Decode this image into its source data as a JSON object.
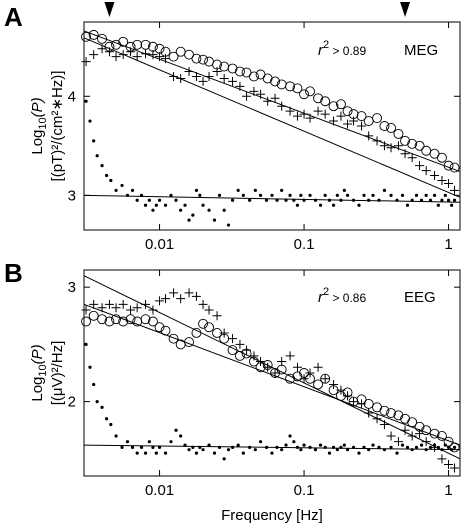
{
  "figure": {
    "xlabel_shared": "Frequency [Hz]"
  },
  "chart_data": [
    {
      "type": "scatter",
      "panel": "A",
      "annotation_r2": "r",
      "annotation_exp": "2",
      "annotation_value": " > 0.89",
      "annotation_modality": "MEG",
      "ylabel_line1_prefix": "Log",
      "ylabel_line1_sub": "10",
      "ylabel_line1_suffix": "(P)",
      "ylabel_line2": "[(pT)²/(cm²∗Hz)]",
      "xscale": "log",
      "xlim": [
        0.003,
        1.2
      ],
      "ylim": [
        2.65,
        4.75
      ],
      "xticks": [
        {
          "v": 0.01,
          "label": "0.01"
        },
        {
          "v": 0.1,
          "label": "0.1"
        },
        {
          "v": 1,
          "label": "1"
        }
      ],
      "yticks": [
        {
          "v": 3,
          "label": "3"
        },
        {
          "v": 4,
          "label": "4"
        }
      ],
      "markers": [
        0.0045,
        0.5
      ],
      "fits": [
        {
          "name": "circles fit",
          "x": [
            0.003,
            1.2
          ],
          "y": [
            4.66,
            3.24
          ]
        },
        {
          "name": "plus fit",
          "x": [
            0.003,
            1.2
          ],
          "y": [
            4.59,
            2.98
          ]
        },
        {
          "name": "dots fit",
          "x": [
            0.003,
            1.2
          ],
          "y": [
            3.0,
            2.93
          ]
        }
      ],
      "series": [
        {
          "marker": "circle",
          "x": [
            0.0031,
            0.0035,
            0.004,
            0.0045,
            0.005,
            0.0056,
            0.0063,
            0.007,
            0.008,
            0.009,
            0.01,
            0.011,
            0.0125,
            0.014,
            0.016,
            0.018,
            0.02,
            0.022,
            0.025,
            0.028,
            0.032,
            0.036,
            0.04,
            0.045,
            0.05,
            0.056,
            0.063,
            0.07,
            0.08,
            0.09,
            0.1,
            0.11,
            0.125,
            0.14,
            0.16,
            0.18,
            0.2,
            0.22,
            0.25,
            0.28,
            0.32,
            0.36,
            0.4,
            0.45,
            0.5,
            0.56,
            0.63,
            0.7,
            0.8,
            0.9,
            1.0,
            1.1
          ],
          "y": [
            4.6,
            4.62,
            4.58,
            4.5,
            4.52,
            4.55,
            4.5,
            4.52,
            4.52,
            4.5,
            4.48,
            4.45,
            4.4,
            4.45,
            4.42,
            4.38,
            4.37,
            4.35,
            4.32,
            4.3,
            4.28,
            4.25,
            4.24,
            4.2,
            4.22,
            4.18,
            4.15,
            4.12,
            4.1,
            4.08,
            4.02,
            4.05,
            3.98,
            3.95,
            3.9,
            3.92,
            3.85,
            3.82,
            3.8,
            3.75,
            3.78,
            3.7,
            3.68,
            3.62,
            3.55,
            3.52,
            3.5,
            3.45,
            3.42,
            3.38,
            3.3,
            3.28
          ]
        },
        {
          "marker": "plus",
          "x": [
            0.0031,
            0.0035,
            0.004,
            0.0045,
            0.005,
            0.0056,
            0.0063,
            0.007,
            0.008,
            0.009,
            0.01,
            0.011,
            0.0125,
            0.014,
            0.016,
            0.018,
            0.02,
            0.022,
            0.025,
            0.028,
            0.032,
            0.036,
            0.04,
            0.045,
            0.05,
            0.056,
            0.063,
            0.07,
            0.08,
            0.09,
            0.1,
            0.11,
            0.125,
            0.14,
            0.16,
            0.18,
            0.2,
            0.22,
            0.25,
            0.28,
            0.32,
            0.36,
            0.4,
            0.45,
            0.5,
            0.56,
            0.63,
            0.7,
            0.8,
            0.9,
            1.0,
            1.1
          ],
          "y": [
            4.35,
            4.42,
            4.48,
            4.45,
            4.4,
            4.42,
            4.45,
            4.4,
            4.43,
            4.42,
            4.4,
            4.38,
            4.2,
            4.18,
            4.25,
            4.2,
            4.15,
            4.2,
            4.25,
            4.18,
            4.15,
            4.1,
            4.0,
            4.05,
            4.02,
            3.95,
            3.98,
            3.9,
            3.85,
            3.8,
            3.82,
            3.78,
            3.85,
            3.82,
            3.75,
            3.8,
            3.72,
            3.75,
            3.7,
            3.6,
            3.55,
            3.5,
            3.48,
            3.5,
            3.42,
            3.38,
            3.3,
            3.25,
            3.2,
            3.15,
            3.12,
            3.05
          ]
        },
        {
          "marker": "dot",
          "x": [
            0.0031,
            0.0033,
            0.0035,
            0.0037,
            0.004,
            0.0043,
            0.0046,
            0.005,
            0.0055,
            0.006,
            0.0065,
            0.007,
            0.0075,
            0.008,
            0.0085,
            0.009,
            0.0095,
            0.01,
            0.011,
            0.012,
            0.013,
            0.014,
            0.015,
            0.016,
            0.017,
            0.018,
            0.019,
            0.02,
            0.022,
            0.024,
            0.026,
            0.028,
            0.03,
            0.032,
            0.035,
            0.038,
            0.042,
            0.046,
            0.05,
            0.055,
            0.06,
            0.065,
            0.07,
            0.075,
            0.08,
            0.085,
            0.09,
            0.095,
            0.1,
            0.11,
            0.12,
            0.13,
            0.14,
            0.15,
            0.16,
            0.17,
            0.18,
            0.19,
            0.2,
            0.22,
            0.24,
            0.26,
            0.28,
            0.3,
            0.33,
            0.36,
            0.4,
            0.44,
            0.48,
            0.52,
            0.56,
            0.6,
            0.65,
            0.7,
            0.75,
            0.8,
            0.85,
            0.9,
            0.95,
            1.0,
            1.05,
            1.1
          ],
          "y": [
            3.95,
            3.75,
            3.55,
            3.4,
            3.3,
            3.2,
            3.15,
            3.05,
            3.1,
            3.0,
            3.05,
            2.95,
            3.0,
            2.9,
            2.95,
            2.85,
            2.9,
            2.95,
            2.9,
            3.0,
            2.95,
            2.85,
            2.9,
            2.75,
            2.8,
            3.05,
            3.0,
            2.9,
            2.85,
            2.75,
            3.0,
            2.85,
            2.7,
            2.95,
            3.05,
            3.0,
            2.95,
            3.05,
            3.0,
            2.95,
            3.0,
            2.95,
            3.05,
            2.95,
            3.0,
            2.95,
            2.9,
            3.0,
            2.95,
            3.0,
            2.95,
            2.9,
            3.0,
            2.95,
            2.9,
            3.0,
            2.95,
            3.05,
            3.0,
            2.95,
            2.9,
            3.0,
            2.95,
            3.0,
            2.95,
            3.05,
            3.0,
            2.95,
            3.0,
            2.9,
            2.95,
            3.0,
            2.95,
            3.0,
            2.95,
            3.0,
            2.9,
            2.95,
            3.0,
            2.95,
            2.9,
            2.95
          ]
        }
      ]
    },
    {
      "type": "scatter",
      "panel": "B",
      "annotation_r2": "r",
      "annotation_exp": "2",
      "annotation_value": " > 0.86",
      "annotation_modality": "EEG",
      "ylabel_line1_prefix": "Log",
      "ylabel_line1_sub": "10",
      "ylabel_line1_suffix": "(P)",
      "ylabel_line2": "[(μV)²/Hz]",
      "xscale": "log",
      "xlim": [
        0.003,
        1.2
      ],
      "ylim": [
        1.35,
        3.15
      ],
      "xticks": [
        {
          "v": 0.01,
          "label": "0.01"
        },
        {
          "v": 0.1,
          "label": "0.1"
        },
        {
          "v": 1,
          "label": "1"
        }
      ],
      "yticks": [
        {
          "v": 2,
          "label": "2"
        },
        {
          "v": 3,
          "label": "3"
        }
      ],
      "fits": [
        {
          "name": "plus fit",
          "x": [
            0.003,
            1.2
          ],
          "y": [
            3.1,
            1.5
          ]
        },
        {
          "name": "circles fit",
          "x": [
            0.003,
            1.2
          ],
          "y": [
            2.85,
            1.62
          ]
        },
        {
          "name": "dots fit",
          "x": [
            0.003,
            1.2
          ],
          "y": [
            1.62,
            1.58
          ]
        }
      ],
      "series": [
        {
          "marker": "circle",
          "x": [
            0.0031,
            0.0035,
            0.004,
            0.0045,
            0.005,
            0.0056,
            0.0063,
            0.007,
            0.008,
            0.009,
            0.01,
            0.011,
            0.0125,
            0.014,
            0.016,
            0.018,
            0.02,
            0.022,
            0.025,
            0.028,
            0.032,
            0.036,
            0.04,
            0.045,
            0.05,
            0.056,
            0.063,
            0.07,
            0.08,
            0.09,
            0.1,
            0.11,
            0.125,
            0.14,
            0.16,
            0.18,
            0.2,
            0.22,
            0.25,
            0.28,
            0.32,
            0.36,
            0.4,
            0.45,
            0.5,
            0.56,
            0.63,
            0.7,
            0.8,
            0.9,
            1.0,
            1.1
          ],
          "y": [
            2.7,
            2.75,
            2.72,
            2.7,
            2.72,
            2.7,
            2.72,
            2.7,
            2.72,
            2.7,
            2.65,
            2.62,
            2.55,
            2.5,
            2.52,
            2.6,
            2.68,
            2.65,
            2.6,
            2.55,
            2.45,
            2.4,
            2.42,
            2.35,
            2.3,
            2.32,
            2.25,
            2.28,
            2.2,
            2.22,
            2.25,
            2.2,
            2.15,
            2.2,
            2.1,
            2.05,
            2.08,
            2.0,
            2.02,
            1.98,
            1.95,
            1.92,
            1.9,
            1.88,
            1.85,
            1.82,
            1.78,
            1.75,
            1.72,
            1.7,
            1.65,
            1.6
          ]
        },
        {
          "marker": "plus",
          "x": [
            0.0031,
            0.0035,
            0.004,
            0.0045,
            0.005,
            0.0056,
            0.0063,
            0.007,
            0.008,
            0.009,
            0.01,
            0.011,
            0.0125,
            0.014,
            0.016,
            0.018,
            0.02,
            0.022,
            0.025,
            0.028,
            0.032,
            0.036,
            0.04,
            0.045,
            0.05,
            0.056,
            0.063,
            0.07,
            0.08,
            0.09,
            0.1,
            0.11,
            0.125,
            0.14,
            0.16,
            0.18,
            0.2,
            0.22,
            0.25,
            0.28,
            0.32,
            0.36,
            0.4,
            0.45,
            0.5,
            0.56,
            0.63,
            0.7,
            0.8,
            0.9,
            1.0,
            1.1
          ],
          "y": [
            2.8,
            2.85,
            2.82,
            2.85,
            2.82,
            2.85,
            2.8,
            2.82,
            2.85,
            2.8,
            2.88,
            2.9,
            2.95,
            2.9,
            2.95,
            2.92,
            2.85,
            2.8,
            2.75,
            2.6,
            2.55,
            2.5,
            2.45,
            2.4,
            2.35,
            2.3,
            2.25,
            2.35,
            2.4,
            2.3,
            2.2,
            2.25,
            2.3,
            2.2,
            2.15,
            2.1,
            2.05,
            2.0,
            1.98,
            1.9,
            1.85,
            1.8,
            1.7,
            1.65,
            1.75,
            1.7,
            1.72,
            1.65,
            1.6,
            1.5,
            1.45,
            1.42
          ]
        },
        {
          "marker": "dot",
          "x": [
            0.0031,
            0.0033,
            0.0035,
            0.0037,
            0.004,
            0.0043,
            0.0046,
            0.005,
            0.0055,
            0.006,
            0.0065,
            0.007,
            0.0075,
            0.008,
            0.0085,
            0.009,
            0.0095,
            0.01,
            0.011,
            0.012,
            0.013,
            0.014,
            0.015,
            0.016,
            0.017,
            0.018,
            0.019,
            0.02,
            0.022,
            0.024,
            0.026,
            0.028,
            0.03,
            0.032,
            0.035,
            0.038,
            0.042,
            0.046,
            0.05,
            0.055,
            0.06,
            0.065,
            0.07,
            0.075,
            0.08,
            0.085,
            0.09,
            0.095,
            0.1,
            0.11,
            0.12,
            0.13,
            0.14,
            0.15,
            0.16,
            0.17,
            0.18,
            0.19,
            0.2,
            0.22,
            0.24,
            0.26,
            0.28,
            0.3,
            0.33,
            0.36,
            0.4,
            0.44,
            0.48,
            0.52,
            0.56,
            0.6,
            0.65,
            0.7,
            0.75,
            0.8,
            0.85,
            0.9,
            0.95,
            1.0,
            1.05,
            1.1
          ],
          "y": [
            2.5,
            2.3,
            2.15,
            2.0,
            1.95,
            1.85,
            1.8,
            1.7,
            1.6,
            1.65,
            1.6,
            1.55,
            1.6,
            1.55,
            1.65,
            1.6,
            1.55,
            1.6,
            1.55,
            1.65,
            1.75,
            1.7,
            1.62,
            1.58,
            1.6,
            1.55,
            1.6,
            1.58,
            1.62,
            1.55,
            1.6,
            1.5,
            1.58,
            1.6,
            1.62,
            1.55,
            1.6,
            1.58,
            1.65,
            1.6,
            1.55,
            1.6,
            1.58,
            1.62,
            1.7,
            1.65,
            1.6,
            1.58,
            1.62,
            1.6,
            1.58,
            1.62,
            1.6,
            1.55,
            1.6,
            1.58,
            1.6,
            1.62,
            1.58,
            1.6,
            1.55,
            1.6,
            1.58,
            1.62,
            1.6,
            1.58,
            1.6,
            1.55,
            1.62,
            1.6,
            1.58,
            1.6,
            1.62,
            1.58,
            1.6,
            1.62,
            1.6,
            1.58,
            1.62,
            1.6,
            1.58,
            1.6
          ]
        }
      ]
    }
  ]
}
